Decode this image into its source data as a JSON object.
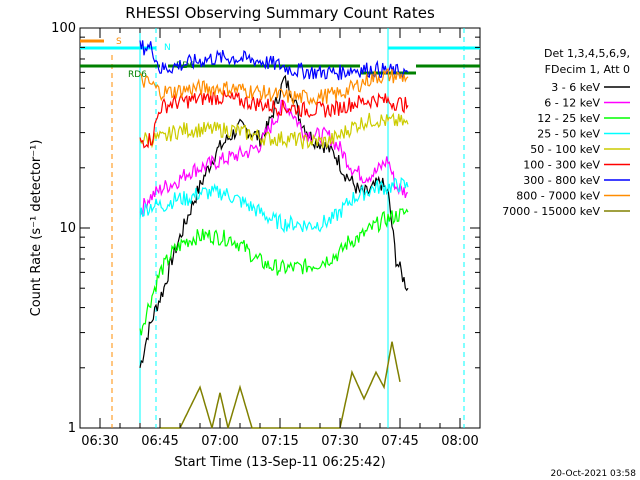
{
  "chart_data": {
    "type": "line",
    "title": "RHESSI Observing Summary Count Rates",
    "xlabel": "Start Time (13-Sep-11 06:25:42)",
    "ylabel": "Count Rate (s⁻¹ detector⁻¹)",
    "y_scale": "log",
    "ylim": [
      1,
      100
    ],
    "y_ticks": [
      {
        "v": 1,
        "label": "1"
      },
      {
        "v": 10,
        "label": "10"
      },
      {
        "v": 100,
        "label": "100"
      }
    ],
    "xlim": [
      "06:25",
      "08:05"
    ],
    "x_ticks": [
      "06:30",
      "06:45",
      "07:00",
      "07:15",
      "07:30",
      "07:45",
      "08:00"
    ],
    "legend_header": [
      "Det 1,3,4,5,6,9,",
      "FDecim 1, Att 0"
    ],
    "series": [
      {
        "name": "3 - 6 keV",
        "color": "#000000",
        "points": [
          [
            "06:40",
            2
          ],
          [
            "06:42",
            3
          ],
          [
            "06:44",
            4
          ],
          [
            "06:46",
            5
          ],
          [
            "06:48",
            7
          ],
          [
            "06:50",
            9
          ],
          [
            "06:53",
            13
          ],
          [
            "06:56",
            18
          ],
          [
            "06:59",
            24
          ],
          [
            "07:02",
            28
          ],
          [
            "07:05",
            32
          ],
          [
            "07:08",
            30
          ],
          [
            "07:10",
            28
          ],
          [
            "07:12",
            32
          ],
          [
            "07:14",
            42
          ],
          [
            "07:16",
            55
          ],
          [
            "07:18",
            48
          ],
          [
            "07:20",
            35
          ],
          [
            "07:23",
            28
          ],
          [
            "07:26",
            26
          ],
          [
            "07:29",
            23
          ],
          [
            "07:31",
            19
          ],
          [
            "07:33",
            17
          ],
          [
            "07:35",
            15
          ],
          [
            "07:37",
            15
          ],
          [
            "07:40",
            17
          ],
          [
            "07:42",
            15
          ],
          [
            "07:44",
            7
          ],
          [
            "07:46",
            5.5
          ],
          [
            "07:47",
            5
          ]
        ]
      },
      {
        "name": "6 - 12 keV",
        "color": "#ff00ff",
        "points": [
          [
            "06:40",
            12
          ],
          [
            "06:42",
            14
          ],
          [
            "06:44",
            15
          ],
          [
            "06:46",
            16
          ],
          [
            "06:49",
            17
          ],
          [
            "06:52",
            19
          ],
          [
            "06:55",
            20
          ],
          [
            "06:58",
            21
          ],
          [
            "07:01",
            22
          ],
          [
            "07:04",
            23
          ],
          [
            "07:07",
            24
          ],
          [
            "07:10",
            26
          ],
          [
            "07:13",
            33
          ],
          [
            "07:16",
            42
          ],
          [
            "07:18",
            38
          ],
          [
            "07:21",
            30
          ],
          [
            "07:24",
            29
          ],
          [
            "07:27",
            29
          ],
          [
            "07:30",
            25
          ],
          [
            "07:33",
            20
          ],
          [
            "07:36",
            18
          ],
          [
            "07:39",
            19
          ],
          [
            "07:42",
            22
          ],
          [
            "07:44",
            16
          ],
          [
            "07:47",
            15
          ]
        ]
      },
      {
        "name": "12 - 25 keV",
        "color": "#00ff00",
        "points": [
          [
            "06:40",
            3
          ],
          [
            "06:42",
            4
          ],
          [
            "06:45",
            6
          ],
          [
            "06:48",
            7.5
          ],
          [
            "06:51",
            8.5
          ],
          [
            "06:54",
            9
          ],
          [
            "06:57",
            9.2
          ],
          [
            "07:00",
            9
          ],
          [
            "07:03",
            8.8
          ],
          [
            "07:06",
            8
          ],
          [
            "07:09",
            7
          ],
          [
            "07:12",
            6.5
          ],
          [
            "07:15",
            6.3
          ],
          [
            "07:18",
            6.3
          ],
          [
            "07:21",
            6.4
          ],
          [
            "07:24",
            6.6
          ],
          [
            "07:27",
            7
          ],
          [
            "07:30",
            7.5
          ],
          [
            "07:32",
            8.5
          ],
          [
            "07:35",
            9
          ],
          [
            "07:38",
            10
          ],
          [
            "07:41",
            11
          ],
          [
            "07:44",
            11.5
          ],
          [
            "07:47",
            12
          ]
        ]
      },
      {
        "name": "25 - 50 keV",
        "color": "#00ffff",
        "points": [
          [
            "06:40",
            12
          ],
          [
            "06:43",
            13
          ],
          [
            "06:46",
            13
          ],
          [
            "06:49",
            14
          ],
          [
            "06:52",
            14
          ],
          [
            "06:55",
            15
          ],
          [
            "06:58",
            15
          ],
          [
            "07:01",
            15
          ],
          [
            "07:04",
            14
          ],
          [
            "07:07",
            13
          ],
          [
            "07:10",
            12
          ],
          [
            "07:13",
            11
          ],
          [
            "07:16",
            10.5
          ],
          [
            "07:19",
            10.5
          ],
          [
            "07:22",
            10.3
          ],
          [
            "07:25",
            10.5
          ],
          [
            "07:28",
            11
          ],
          [
            "07:30",
            12
          ],
          [
            "07:33",
            14
          ],
          [
            "07:36",
            15
          ],
          [
            "07:39",
            16
          ],
          [
            "07:42",
            16
          ],
          [
            "07:45",
            16.5
          ],
          [
            "07:47",
            16
          ]
        ]
      },
      {
        "name": "50 - 100 keV",
        "color": "#cccc00",
        "points": [
          [
            "06:40",
            28
          ],
          [
            "06:43",
            28
          ],
          [
            "06:46",
            28
          ],
          [
            "06:48",
            30
          ],
          [
            "06:51",
            31
          ],
          [
            "06:54",
            31
          ],
          [
            "06:57",
            31
          ],
          [
            "07:00",
            31
          ],
          [
            "07:03",
            31
          ],
          [
            "07:06",
            30
          ],
          [
            "07:09",
            29
          ],
          [
            "07:12",
            28
          ],
          [
            "07:15",
            28
          ],
          [
            "07:18",
            28
          ],
          [
            "07:21",
            27
          ],
          [
            "07:24",
            27
          ],
          [
            "07:27",
            27
          ],
          [
            "07:30",
            29
          ],
          [
            "07:33",
            32
          ],
          [
            "07:36",
            34
          ],
          [
            "07:39",
            35
          ],
          [
            "07:42",
            34
          ],
          [
            "07:45",
            34
          ],
          [
            "07:47",
            33
          ]
        ]
      },
      {
        "name": "100 - 300 keV",
        "color": "#ff0000",
        "points": [
          [
            "06:40",
            27
          ],
          [
            "06:43",
            28
          ],
          [
            "06:45",
            40
          ],
          [
            "06:48",
            42
          ],
          [
            "06:51",
            43
          ],
          [
            "06:54",
            44
          ],
          [
            "06:57",
            45
          ],
          [
            "07:00",
            45
          ],
          [
            "07:03",
            44
          ],
          [
            "07:06",
            43
          ],
          [
            "07:09",
            42
          ],
          [
            "07:12",
            41
          ],
          [
            "07:15",
            40
          ],
          [
            "07:18",
            40
          ],
          [
            "07:21",
            39
          ],
          [
            "07:24",
            39
          ],
          [
            "07:27",
            39
          ],
          [
            "07:30",
            40
          ],
          [
            "07:33",
            42
          ],
          [
            "07:36",
            43
          ],
          [
            "07:39",
            44
          ],
          [
            "07:42",
            43
          ],
          [
            "07:45",
            42
          ],
          [
            "07:47",
            41
          ]
        ]
      },
      {
        "name": "300 - 800 keV",
        "color": "#0000ff",
        "points": [
          [
            "06:40",
            80
          ],
          [
            "06:43",
            80
          ],
          [
            "06:45",
            62
          ],
          [
            "06:48",
            64
          ],
          [
            "06:51",
            66
          ],
          [
            "06:54",
            68
          ],
          [
            "06:57",
            70
          ],
          [
            "07:00",
            71
          ],
          [
            "07:03",
            71
          ],
          [
            "07:06",
            70
          ],
          [
            "07:09",
            69
          ],
          [
            "07:12",
            67
          ],
          [
            "07:15",
            65
          ],
          [
            "07:18",
            62
          ],
          [
            "07:21",
            61
          ],
          [
            "07:24",
            60
          ],
          [
            "07:27",
            60
          ],
          [
            "07:30",
            60
          ],
          [
            "07:33",
            62
          ],
          [
            "07:36",
            62
          ],
          [
            "07:39",
            62
          ],
          [
            "07:42",
            61
          ],
          [
            "07:45",
            60
          ],
          [
            "07:47",
            60
          ]
        ]
      },
      {
        "name": "800 - 7000 keV",
        "color": "#ff8c00",
        "points": [
          [
            "06:40",
            55
          ],
          [
            "06:43",
            52
          ],
          [
            "06:45",
            48
          ],
          [
            "06:48",
            48
          ],
          [
            "06:51",
            49
          ],
          [
            "06:54",
            50
          ],
          [
            "06:57",
            50
          ],
          [
            "07:00",
            50
          ],
          [
            "07:03",
            50
          ],
          [
            "07:06",
            49
          ],
          [
            "07:09",
            48
          ],
          [
            "07:12",
            47
          ],
          [
            "07:15",
            46
          ],
          [
            "07:18",
            45
          ],
          [
            "07:21",
            45
          ],
          [
            "07:24",
            45
          ],
          [
            "07:27",
            46
          ],
          [
            "07:30",
            47
          ],
          [
            "07:33",
            50
          ],
          [
            "07:36",
            54
          ],
          [
            "07:39",
            57
          ],
          [
            "07:42",
            58
          ],
          [
            "07:45",
            57
          ],
          [
            "07:47",
            57
          ]
        ]
      },
      {
        "name": "7000 - 15000 keV",
        "color": "#808000",
        "points": [
          [
            "06:45",
            1.0
          ],
          [
            "06:50",
            1.0
          ],
          [
            "06:55",
            1.6
          ],
          [
            "06:58",
            1.0
          ],
          [
            "07:00",
            1.5
          ],
          [
            "07:02",
            1.0
          ],
          [
            "07:05",
            1.6
          ],
          [
            "07:08",
            1.0
          ],
          [
            "07:30",
            1.0
          ],
          [
            "07:33",
            1.9
          ],
          [
            "07:36",
            1.4
          ],
          [
            "07:39",
            1.9
          ],
          [
            "07:41",
            1.6
          ],
          [
            "07:43",
            2.7
          ],
          [
            "07:45",
            1.7
          ]
        ]
      }
    ],
    "markers": {
      "attenuator_label": "S",
      "night_label": "N",
      "rd_labels": [
        "RD6",
        "RD6"
      ]
    }
  },
  "footer": {
    "timestamp": "20-Oct-2021 03:58"
  }
}
